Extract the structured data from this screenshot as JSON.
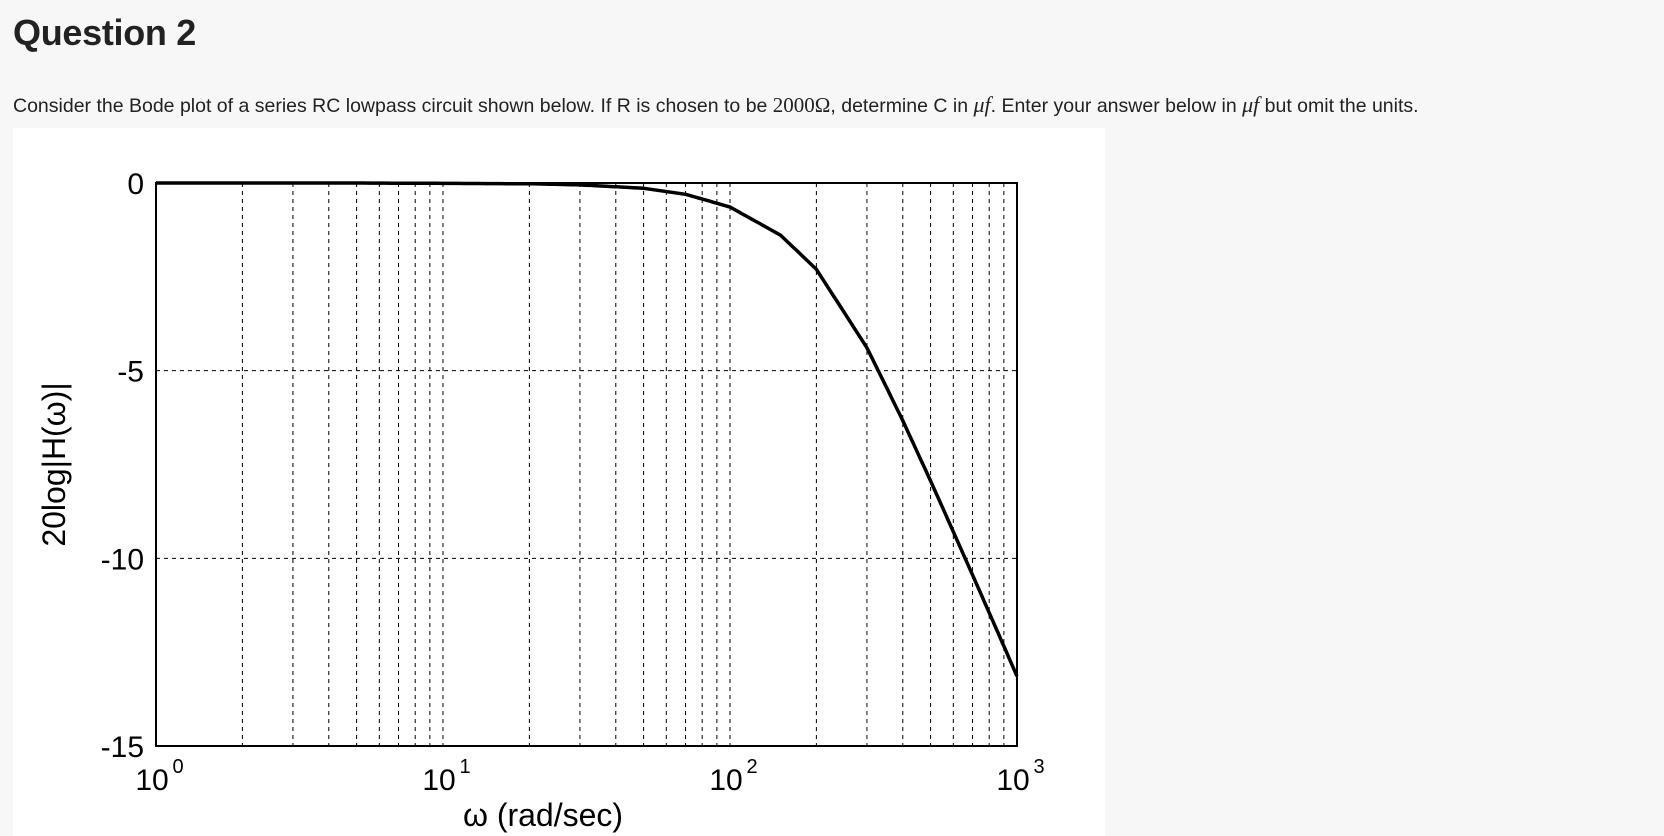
{
  "question": {
    "title": "Question 2",
    "text_part1": "Consider the Bode plot of a series RC lowpass circuit shown below. If R is chosen to be ",
    "resistance": "2000Ω",
    "text_part2": ", determine C in ",
    "unit1": "μf",
    "text_part3": ". Enter your answer below in ",
    "unit2": "μf",
    "text_part4": " but omit the units."
  },
  "chart_data": {
    "type": "line",
    "title": "",
    "xlabel": "ω (rad/sec)",
    "ylabel": "20log|H(ω)|",
    "x_scale": "log",
    "xlim": [
      1,
      1000
    ],
    "ylim": [
      -15,
      0
    ],
    "x_ticks": [
      {
        "base": "10",
        "exp": "0"
      },
      {
        "base": "10",
        "exp": "1"
      },
      {
        "base": "10",
        "exp": "2"
      },
      {
        "base": "10",
        "exp": "3"
      }
    ],
    "y_ticks": [
      "0",
      "-5",
      "-10",
      "-15"
    ],
    "grid": true,
    "line_color": "#000000",
    "series": [
      {
        "x": [
          1,
          2,
          5,
          10,
          20,
          30,
          50,
          70,
          100,
          150,
          200,
          300,
          400,
          500,
          600,
          700,
          800,
          900,
          1000
        ],
        "y": [
          0,
          0,
          0,
          -0.01,
          -0.02,
          -0.05,
          -0.14,
          -0.3,
          -0.64,
          -1.39,
          -2.3,
          -4.39,
          -6.33,
          -7.94,
          -9.29,
          -10.44,
          -11.45,
          -12.34,
          -13.14
        ]
      }
    ]
  }
}
